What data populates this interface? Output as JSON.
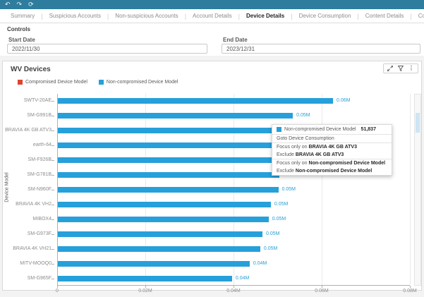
{
  "toolbar": {
    "color": "#2e7d9e",
    "icons": [
      {
        "name": "undo-icon",
        "glyph": "↶"
      },
      {
        "name": "redo-icon",
        "glyph": "↷"
      },
      {
        "name": "reset-icon",
        "glyph": "⟳"
      }
    ]
  },
  "tabs": [
    {
      "label": "Summary",
      "active": false
    },
    {
      "label": "Suspicious Accounts",
      "active": false
    },
    {
      "label": "Non-suspicious Accounts",
      "active": false
    },
    {
      "label": "Account Details",
      "active": false
    },
    {
      "label": "Device Details",
      "active": true
    },
    {
      "label": "Device Consumption",
      "active": false
    },
    {
      "label": "Content Details",
      "active": false
    },
    {
      "label": "Configuration",
      "active": false
    }
  ],
  "controls": {
    "title": "Controls",
    "start_date": {
      "label": "Start Date",
      "value": "2022/11/30"
    },
    "end_date": {
      "label": "End Date",
      "value": "2023/12/31"
    }
  },
  "chart_card": {
    "title": "WV Devices",
    "legend": [
      {
        "label": "Compromised Device Model",
        "color": "#e0432d"
      },
      {
        "label": "Non-compromised Device Model",
        "color": "#26a0da"
      }
    ]
  },
  "chart_data": {
    "type": "bar",
    "orientation": "horizontal",
    "title": "WV Devices",
    "ylabel": "Device Model",
    "xlabel": "",
    "xlim": [
      0,
      0.08
    ],
    "grid": true,
    "legend_position": "top-left",
    "x_ticks": [
      {
        "label": "0",
        "value": 0
      },
      {
        "label": "0.02M",
        "value": 0.02
      },
      {
        "label": "0.04M",
        "value": 0.04
      },
      {
        "label": "0.06M",
        "value": 0.06
      },
      {
        "label": "0.08M",
        "value": 0.08
      }
    ],
    "categories": [
      "SWTV-20AE",
      "SM-G991B",
      "BRAVIA 4K GB ATV3",
      "earth-64",
      "SM-F926B",
      "SM-G781B",
      "SM-N960F",
      "BRAVIA 4K VH2",
      "MIBOX4",
      "SM-G973F",
      "BRAVIA 4K VH21",
      "MITV-MOOQ0",
      "SM-G965F"
    ],
    "series": [
      {
        "name": "Non-compromised Device Model",
        "color": "#26a0da",
        "values": [
          0.0624,
          0.0533,
          0.0518,
          0.0512,
          0.0507,
          0.0502,
          0.05,
          0.0483,
          0.0478,
          0.0464,
          0.0459,
          0.0435,
          0.0395
        ],
        "bar_labels": [
          "0.06M",
          "0.05M",
          "0.05M",
          "0.05M",
          "0.05M",
          "0.05M",
          "0.05M",
          "0.05M",
          "0.05M",
          "0.05M",
          "0.05M",
          "0.04M",
          "0.04M"
        ]
      }
    ]
  },
  "context_menu": {
    "header": {
      "series": "Non-compromised Device Model",
      "value": "51,837",
      "swatch_color": "#26a0da"
    },
    "items": [
      {
        "prefix": "Goto Device Consumption",
        "bold": "",
        "separator_after": true
      },
      {
        "prefix": "Focus only on ",
        "bold": "BRAVIA 4K GB ATV3",
        "separator_after": false
      },
      {
        "prefix": "Exclude ",
        "bold": "BRAVIA 4K GB ATV3",
        "separator_after": true
      },
      {
        "prefix": "Focus only on ",
        "bold": "Non-compromised Device Model",
        "separator_after": false
      },
      {
        "prefix": "Exclude ",
        "bold": "Non-compromised Device Model",
        "separator_after": false
      }
    ]
  }
}
